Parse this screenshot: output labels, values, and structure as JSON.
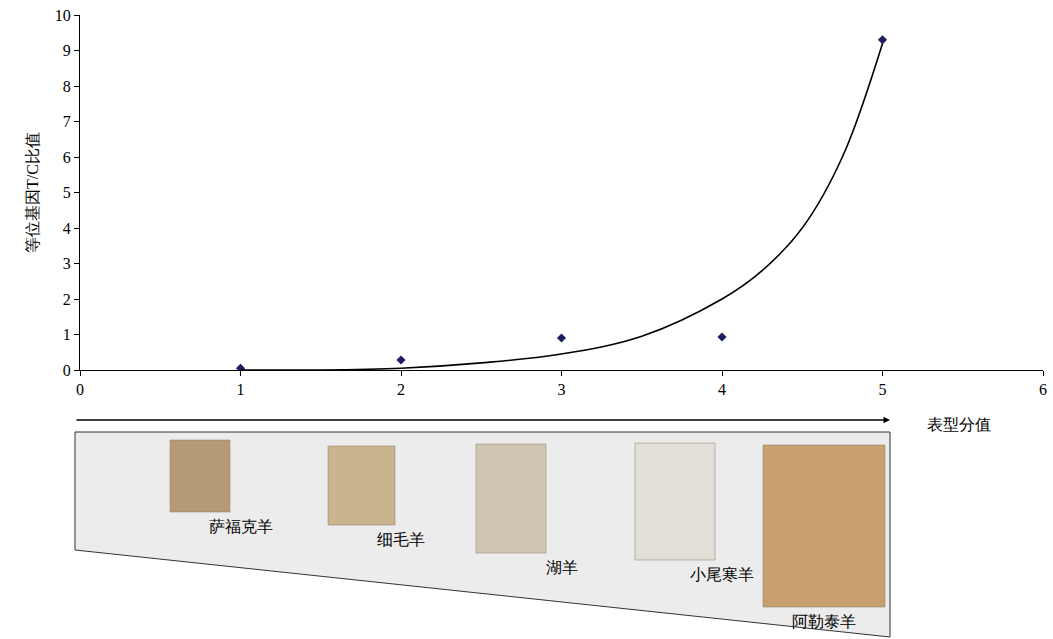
{
  "chart_data": {
    "type": "scatter",
    "x_label": "表型分值",
    "y_label": "等位基因T/C比值",
    "xlim": [
      0,
      6
    ],
    "ylim": [
      0,
      10
    ],
    "xticks": [
      0,
      1,
      2,
      3,
      4,
      5,
      6
    ],
    "yticks": [
      0,
      1,
      2,
      3,
      4,
      5,
      6,
      7,
      8,
      9,
      10
    ],
    "grid": false,
    "series": [
      {
        "type": "scatter",
        "marker": "diamond",
        "color": "#1b1f5e",
        "x": [
          1,
          2,
          3,
          4,
          5
        ],
        "values": [
          0.05,
          0.28,
          0.9,
          0.93,
          9.3
        ]
      },
      {
        "type": "line",
        "line_style": "solid",
        "color": "#000000",
        "x": [
          1,
          1.5,
          2,
          2.5,
          3,
          3.5,
          4,
          4.25,
          4.5,
          4.75,
          5
        ],
        "values": [
          0.0,
          0.0,
          0.05,
          0.2,
          0.45,
          0.95,
          2.0,
          2.8,
          4.0,
          6.0,
          9.2
        ]
      }
    ],
    "annotations": [
      {
        "x": 1,
        "text": "萨福克羊"
      },
      {
        "x": 2,
        "text": "细毛羊"
      },
      {
        "x": 3,
        "text": "湖羊"
      },
      {
        "x": 4,
        "text": "小尾寒羊"
      },
      {
        "x": 5,
        "text": "阿勒泰羊"
      }
    ]
  }
}
